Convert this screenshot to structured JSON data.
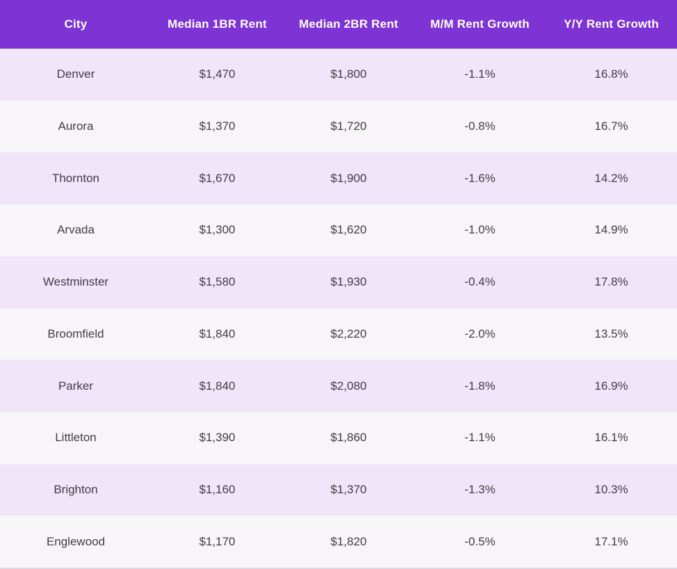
{
  "chart_data": {
    "type": "table",
    "title": "",
    "columns": [
      "City",
      "Median 1BR Rent",
      "Median 2BR Rent",
      "M/M Rent Growth",
      "Y/Y Rent Growth"
    ],
    "rows": [
      [
        "Denver",
        "$1,470",
        "$1,800",
        "-1.1%",
        "16.8%"
      ],
      [
        "Aurora",
        "$1,370",
        "$1,720",
        "-0.8%",
        "16.7%"
      ],
      [
        "Thornton",
        "$1,670",
        "$1,900",
        "-1.6%",
        "14.2%"
      ],
      [
        "Arvada",
        "$1,300",
        "$1,620",
        "-1.0%",
        "14.9%"
      ],
      [
        "Westminster",
        "$1,580",
        "$1,930",
        "-0.4%",
        "17.8%"
      ],
      [
        "Broomfield",
        "$1,840",
        "$2,220",
        "-2.0%",
        "13.5%"
      ],
      [
        "Parker",
        "$1,840",
        "$2,080",
        "-1.8%",
        "16.9%"
      ],
      [
        "Littleton",
        "$1,390",
        "$1,860",
        "-1.1%",
        "16.1%"
      ],
      [
        "Brighton",
        "$1,160",
        "$1,370",
        "-1.3%",
        "10.3%"
      ],
      [
        "Englewood",
        "$1,170",
        "$1,820",
        "-0.5%",
        "17.1%"
      ]
    ],
    "layout": {
      "header_row": true,
      "alternating_rows": true,
      "first_alternate_color_row_index": 0
    }
  },
  "colors": {
    "header_bg": "#7e33d4",
    "header_text": "#ffffff",
    "row_alt_bg": "#f0e5f9",
    "row_base_bg": "#f7f5f8",
    "cell_text": "#3f3e44",
    "bottom_border": "#dbdae0"
  }
}
